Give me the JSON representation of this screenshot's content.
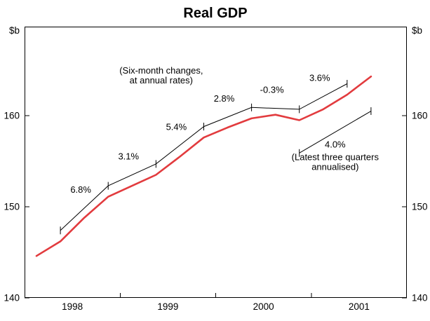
{
  "chart_data": {
    "type": "line",
    "title": "Real GDP",
    "y_unit": "$b",
    "ylim": [
      140,
      169.77
    ],
    "yticks": [
      140,
      150,
      160
    ],
    "xlim": [
      1998.0,
      2002.0
    ],
    "x_year_ticks": [
      1999,
      2000,
      2001
    ],
    "x_year_labels": [
      {
        "label": "1998",
        "x": 1998.5
      },
      {
        "label": "1999",
        "x": 1999.5
      },
      {
        "label": "2000",
        "x": 2000.5
      },
      {
        "label": "2001",
        "x": 2001.5
      }
    ],
    "grid": false,
    "legend": "none",
    "series": [
      {
        "name": "Real GDP",
        "color": "#e23b3e",
        "x": [
          1998.125,
          1998.375,
          1998.625,
          1998.875,
          1999.125,
          1999.375,
          1999.625,
          1999.875,
          2000.125,
          2000.375,
          2000.625,
          2000.875,
          2001.125,
          2001.375,
          2001.625
        ],
        "values": [
          144.6,
          146.2,
          148.8,
          151.1,
          152.3,
          153.5,
          155.5,
          157.6,
          158.7,
          159.7,
          160.1,
          159.5,
          160.7,
          162.3,
          164.3
        ]
      }
    ],
    "annotations": {
      "note_lines": [
        "(Six-month changes,",
        "at annual rates)"
      ],
      "note_pos": {
        "x": 1999.43,
        "v": 164.6
      },
      "six_month_changes": {
        "labels": [
          "6.8%",
          "3.1%",
          "5.4%",
          "2.8%",
          "-0.3%",
          "3.6%"
        ],
        "vertices": [
          {
            "x": 1998.375,
            "v": 147.4
          },
          {
            "x": 1998.875,
            "v": 152.3
          },
          {
            "x": 1999.375,
            "v": 154.7
          },
          {
            "x": 1999.875,
            "v": 158.8
          },
          {
            "x": 2000.375,
            "v": 160.9
          },
          {
            "x": 2000.875,
            "v": 160.7
          },
          {
            "x": 2001.375,
            "v": 163.5
          }
        ]
      },
      "latest_three_quarters": {
        "label": "4.0%",
        "sub_lines": [
          "(Latest three quarters",
          "annualised)"
        ],
        "from": {
          "x": 2000.875,
          "v": 155.9
        },
        "to": {
          "x": 2001.625,
          "v": 160.5
        }
      }
    }
  }
}
